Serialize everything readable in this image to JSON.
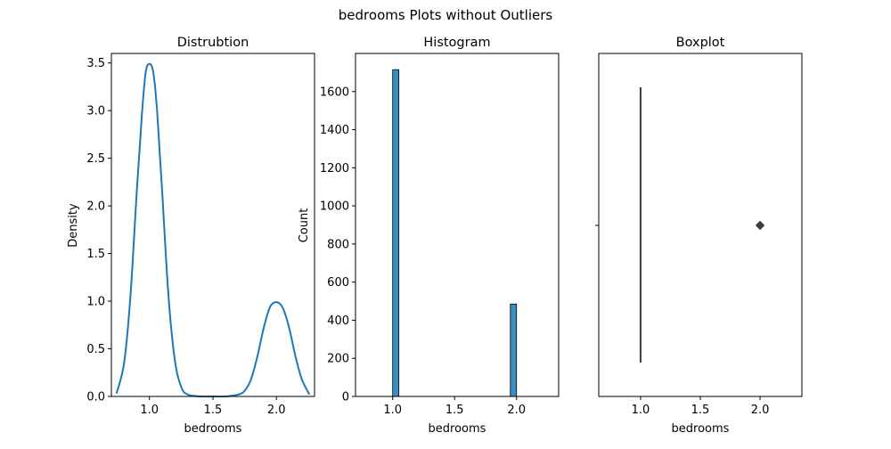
{
  "suptitle": "bedrooms Plots without Outliers",
  "chart_data": [
    {
      "type": "line",
      "title": "Distrubtion",
      "xlabel": "bedrooms",
      "ylabel": "Density",
      "xlim": [
        0.7,
        2.3
      ],
      "ylim": [
        0,
        3.6
      ],
      "xticks": [
        1.0,
        1.5,
        2.0
      ],
      "xtick_labels": [
        "1.0",
        "1.5",
        "2.0"
      ],
      "yticks": [
        0.0,
        0.5,
        1.0,
        1.5,
        2.0,
        2.5,
        3.0,
        3.5
      ],
      "ytick_labels": [
        "0.0",
        "0.5",
        "1.0",
        "1.5",
        "2.0",
        "2.5",
        "3.0",
        "3.5"
      ],
      "line_color": "#1f77b4",
      "series": [
        {
          "x": [
            0.74,
            0.8,
            0.85,
            0.9,
            0.94,
            0.97,
            1.0,
            1.03,
            1.06,
            1.1,
            1.15,
            1.2,
            1.25,
            1.3,
            1.4,
            1.5,
            1.6,
            1.7,
            1.75,
            1.8,
            1.85,
            1.9,
            1.95,
            2.0,
            2.05,
            2.1,
            2.15,
            2.2,
            2.26
          ],
          "y": [
            0.03,
            0.35,
            1.05,
            2.15,
            2.95,
            3.4,
            3.49,
            3.4,
            3.0,
            2.15,
            1.05,
            0.38,
            0.1,
            0.02,
            0.0,
            0.0,
            0.0,
            0.02,
            0.06,
            0.18,
            0.42,
            0.72,
            0.94,
            0.99,
            0.93,
            0.72,
            0.42,
            0.18,
            0.02
          ]
        }
      ]
    },
    {
      "type": "bar",
      "title": "Histogram",
      "xlabel": "bedrooms",
      "ylabel": "Count",
      "xlim": [
        0.7,
        2.34
      ],
      "ylim": [
        0,
        1800
      ],
      "xticks": [
        1.0,
        1.5,
        2.0
      ],
      "xtick_labels": [
        "1.0",
        "1.5",
        "2.0"
      ],
      "yticks": [
        0,
        200,
        400,
        600,
        800,
        1000,
        1200,
        1400,
        1600
      ],
      "ytick_labels": [
        "0",
        "200",
        "400",
        "600",
        "800",
        "1000",
        "1200",
        "1400",
        "1600"
      ],
      "bar_color": "#3a8ebf",
      "bin_width": 0.05,
      "bins": [
        {
          "left": 1.0,
          "value": 1715
        },
        {
          "left": 1.95,
          "value": 485
        }
      ]
    },
    {
      "type": "box",
      "title": "Boxplot",
      "xlabel": "bedrooms",
      "xlim": [
        0.65,
        2.35
      ],
      "xticks": [
        1.0,
        1.5,
        2.0
      ],
      "xtick_labels": [
        "1.0",
        "1.5",
        "2.0"
      ],
      "box_color": "#3d3d3d",
      "q1": 1.0,
      "median": 1.0,
      "q3": 1.0,
      "whisker_low": 1.0,
      "whisker_high": 1.0,
      "outliers": [
        2.0
      ]
    }
  ]
}
